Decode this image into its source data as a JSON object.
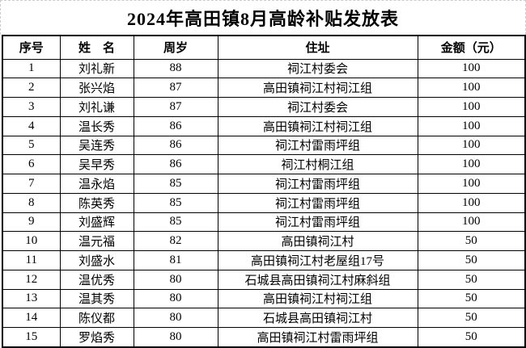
{
  "page": {
    "title": "2024年高田镇8月高龄补贴发放表"
  },
  "colors": {
    "background": "#ffffff",
    "text": "#000000",
    "table_border": "#000000",
    "page_gridline": "#cccccc"
  },
  "table": {
    "headers": {
      "no": "序号",
      "name": "姓　名",
      "age": "周岁",
      "address": "住址",
      "amount": "金额（元）"
    },
    "rows": [
      {
        "no": "1",
        "name": "刘礼新",
        "age": "88",
        "address": "祠江村委会",
        "amount": "100"
      },
      {
        "no": "2",
        "name": "张兴焰",
        "age": "87",
        "address": "高田镇祠江村祠江组",
        "amount": "100"
      },
      {
        "no": "3",
        "name": "刘礼谦",
        "age": "87",
        "address": "祠江村委会",
        "amount": "100"
      },
      {
        "no": "4",
        "name": "温长秀",
        "age": "86",
        "address": "高田镇祠江村祠江组",
        "amount": "100"
      },
      {
        "no": "5",
        "name": "吴连秀",
        "age": "86",
        "address": "祠江村雷雨坪组",
        "amount": "100"
      },
      {
        "no": "6",
        "name": "吴早秀",
        "age": "86",
        "address": "祠江村桐江组",
        "amount": "100"
      },
      {
        "no": "7",
        "name": "温永焰",
        "age": "85",
        "address": "祠江村雷雨坪组",
        "amount": "100"
      },
      {
        "no": "8",
        "name": "陈英秀",
        "age": "85",
        "address": "祠江村雷雨坪组",
        "amount": "100"
      },
      {
        "no": "9",
        "name": "刘盛辉",
        "age": "85",
        "address": "祠江村雷雨坪组",
        "amount": "100"
      },
      {
        "no": "10",
        "name": "温元福",
        "age": "82",
        "address": "高田镇祠江村",
        "amount": "50"
      },
      {
        "no": "11",
        "name": "刘盛水",
        "age": "81",
        "address": "高田镇祠江村老屋组17号",
        "amount": "50"
      },
      {
        "no": "12",
        "name": "温优秀",
        "age": "80",
        "address": "石城县高田镇祠江村麻斜组",
        "amount": "50"
      },
      {
        "no": "13",
        "name": "温其秀",
        "age": "80",
        "address": "高田镇祠江村祠江组",
        "amount": "50"
      },
      {
        "no": "14",
        "name": "陈仪都",
        "age": "80",
        "address": "石城县高田镇祠江村",
        "amount": "50"
      },
      {
        "no": "15",
        "name": "罗焰秀",
        "age": "80",
        "address": "高田镇祠江村雷雨坪组",
        "amount": "50"
      }
    ]
  }
}
